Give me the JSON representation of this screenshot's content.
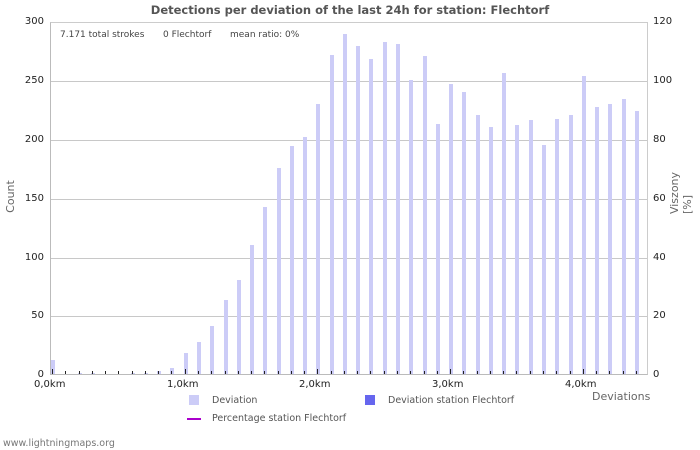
{
  "title": "Detections per deviation of the last 24h for station: Flechtorf",
  "info": {
    "total": "7.171 total strokes",
    "station": "0 Flechtorf",
    "ratio": "mean ratio: 0%"
  },
  "axes": {
    "left_title": "Count",
    "right_title": "Viszony [%]",
    "x_title": "Deviations",
    "left_ticks": [
      "300",
      "250",
      "200",
      "150",
      "100",
      "50",
      "0"
    ],
    "right_ticks": [
      "120",
      "100",
      "80",
      "60",
      "40",
      "20",
      "0"
    ],
    "x_ticks": [
      "0,0km",
      "1,0km",
      "2,0km",
      "3,0km",
      "4,0km"
    ]
  },
  "legend": {
    "deviation": "Deviation",
    "deviation_station": "Deviation station Flechtorf",
    "percentage_station": "Percentage station Flechtorf"
  },
  "colors": {
    "deviation": "#ccccf7",
    "deviation_station": "#6666ee",
    "percentage_station": "#aa00cc"
  },
  "footer": "www.lightningmaps.org",
  "chart_data": {
    "type": "bar",
    "title": "Detections per deviation of the last 24h for station: Flechtorf",
    "xlabel": "Deviations",
    "ylabel": "Count",
    "y2label": "Viszony [%]",
    "ylim": [
      0,
      300
    ],
    "y2lim": [
      0,
      120
    ],
    "grid": true,
    "legend_position": "bottom",
    "categories": [
      "0.0",
      "0.1",
      "0.2",
      "0.3",
      "0.4",
      "0.5",
      "0.6",
      "0.7",
      "0.8",
      "0.9",
      "1.0",
      "1.1",
      "1.2",
      "1.3",
      "1.4",
      "1.5",
      "1.6",
      "1.7",
      "1.8",
      "1.9",
      "2.0",
      "2.1",
      "2.2",
      "2.3",
      "2.4",
      "2.5",
      "2.6",
      "2.7",
      "2.8",
      "2.9",
      "3.0",
      "3.1",
      "3.2",
      "3.3",
      "3.4",
      "3.5",
      "3.6",
      "3.7",
      "3.8",
      "3.9",
      "4.0",
      "4.1",
      "4.2",
      "4.3",
      "4.4"
    ],
    "series": [
      {
        "name": "Deviation",
        "values": [
          12,
          0,
          1,
          1,
          0,
          0,
          1,
          1,
          3,
          5,
          18,
          27,
          41,
          63,
          80,
          110,
          143,
          176,
          195,
          203,
          231,
          273,
          291,
          280,
          269,
          284,
          282,
          251,
          272,
          214,
          248,
          241,
          221,
          211,
          257,
          213,
          217,
          196,
          218,
          221,
          255,
          228,
          231,
          235,
          225
        ]
      },
      {
        "name": "Deviation station Flechtorf",
        "values": [
          0,
          0,
          0,
          0,
          0,
          0,
          0,
          0,
          0,
          0,
          0,
          0,
          0,
          0,
          0,
          0,
          0,
          0,
          0,
          0,
          0,
          0,
          0,
          0,
          0,
          0,
          0,
          0,
          0,
          0,
          0,
          0,
          0,
          0,
          0,
          0,
          0,
          0,
          0,
          0,
          0,
          0,
          0,
          0,
          0
        ]
      },
      {
        "name": "Percentage station Flechtorf",
        "values": [
          0,
          0,
          0,
          0,
          0,
          0,
          0,
          0,
          0,
          0,
          0,
          0,
          0,
          0,
          0,
          0,
          0,
          0,
          0,
          0,
          0,
          0,
          0,
          0,
          0,
          0,
          0,
          0,
          0,
          0,
          0,
          0,
          0,
          0,
          0,
          0,
          0,
          0,
          0,
          0,
          0,
          0,
          0,
          0,
          0
        ]
      }
    ]
  }
}
